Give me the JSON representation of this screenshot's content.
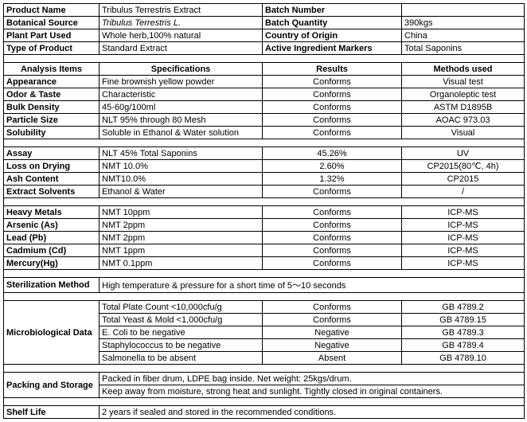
{
  "header": {
    "rows": [
      {
        "l1": "Product Name",
        "l2": "Tribulus Terrestris Extract",
        "r1": "Batch Number",
        "r2": ""
      },
      {
        "l1": "Botanical Source",
        "l2": "Tribulus Terrestris L.",
        "l2_italic": true,
        "r1": "Batch Quantity",
        "r2": "390kgs"
      },
      {
        "l1": "Plant Part Used",
        "l2": "Whole herb,100% natural",
        "r1": "Country of Origin",
        "r2": "China"
      },
      {
        "l1": "Type of Product",
        "l2": "Standard Extract",
        "r1": "Active Ingredient Markers",
        "r2": "Total Saponins"
      }
    ]
  },
  "analysis_header": {
    "c1": "Analysis Items",
    "c2": "Specifications",
    "c3": "Results",
    "c4": "Methods used"
  },
  "group1": [
    {
      "c1": "Appearance",
      "c2": "Fine brownish yellow powder",
      "c3": "Conforms",
      "c4": "Visual test"
    },
    {
      "c1": "Odor & Taste",
      "c2": "Characteristic",
      "c3": "Conforms",
      "c4": "Organoleptic test"
    },
    {
      "c1": "Bulk Density",
      "c2": "45-60g/100ml",
      "c3": "Conforms",
      "c4": "ASTM D1895B"
    },
    {
      "c1": "Particle Size",
      "c2": "NLT 95% through 80 Mesh",
      "c3": "Conforms",
      "c4": "AOAC 973.03"
    },
    {
      "c1": "Solubility",
      "c2": "Soluble in Ethanol & Water solution",
      "c3": "Conforms",
      "c4": "Visual"
    }
  ],
  "group2": [
    {
      "c1": "Assay",
      "c2": "NLT 45% Total Saponins",
      "c3": "45.26%",
      "c4": "UV"
    },
    {
      "c1": "Loss on Drying",
      "c2": "NMT 10.0%",
      "c3": "2.60%",
      "c4": "CP2015(80℃, 4h)"
    },
    {
      "c1": "Ash Content",
      "c2": "NMT10.0%",
      "c3": "1.32%",
      "c4": "CP2015"
    },
    {
      "c1": "Extract Solvents",
      "c2": "Ethanol & Water",
      "c3": "Conforms",
      "c4": "/"
    }
  ],
  "group3": [
    {
      "c1": "Heavy Metals",
      "c2": "NMT 10ppm",
      "c3": "Conforms",
      "c4": "ICP-MS"
    },
    {
      "c1": "Arsenic (As)",
      "c2": "NMT 2ppm",
      "c3": "Conforms",
      "c4": "ICP-MS"
    },
    {
      "c1": "Lead (Pb)",
      "c2": "NMT 2ppm",
      "c3": "Conforms",
      "c4": "ICP-MS"
    },
    {
      "c1": "Cadmium (Cd)",
      "c2": "NMT 1ppm",
      "c3": "Conforms",
      "c4": "ICP-MS"
    },
    {
      "c1": "Mercury(Hg)",
      "c2": "NMT 0.1ppm",
      "c3": "Conforms",
      "c4": "ICP-MS"
    }
  ],
  "sterilization": {
    "label": "Sterilization Method",
    "value": "High temperature & pressure for a short time of 5～10 seconds"
  },
  "micro_label": "Microbiological Data",
  "micro": [
    {
      "c2": "Total Plate Count <10,000cfu/g",
      "c3": "Conforms",
      "c4": "GB 4789.2"
    },
    {
      "c2": "Total Yeast & Mold <1,000cfu/g",
      "c3": "Conforms",
      "c4": "GB 4789.15"
    },
    {
      "c2": "E. Coli to be negative",
      "c3": "Negative",
      "c4": "GB 4789.3"
    },
    {
      "c2": "Staphylococcus to be negative",
      "c3": "Negative",
      "c4": "GB 4789.4"
    },
    {
      "c2": "Salmonella to be absent",
      "c3": "Absent",
      "c4": "GB 4789.10"
    }
  ],
  "packing": {
    "label": "Packing and Storage",
    "row1": "Packed in fiber drum, LDPE bag inside. Net weight: 25kgs/drum.",
    "row2": "Keep away from moisture, strong heat and sunlight. Tightly closed in original containers."
  },
  "shelf": {
    "label": "Shelf Life",
    "value": "2 years if sealed and stored in the recommended conditions."
  }
}
